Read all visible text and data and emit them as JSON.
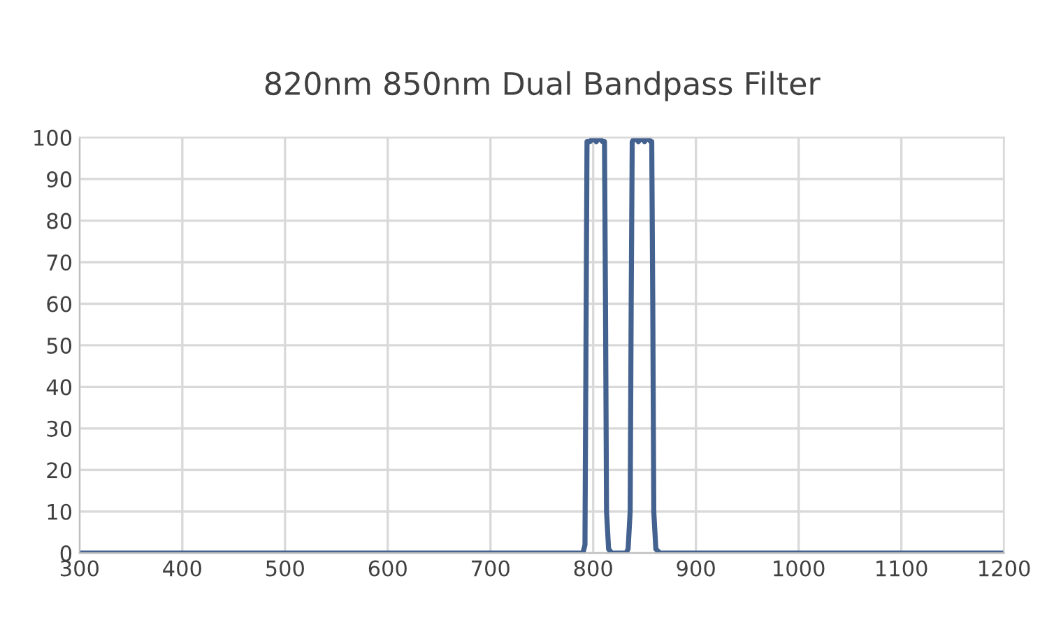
{
  "chart_data": {
    "type": "line",
    "title": "820nm 850nm Dual Bandpass Filter",
    "series": [
      {
        "color": "#44628f",
        "x": [
          300,
          400,
          500,
          600,
          700,
          780,
          790,
          792,
          793,
          794,
          797,
          800,
          803,
          806,
          809,
          811,
          812,
          813,
          815,
          818,
          825,
          832,
          834,
          836,
          837,
          838,
          841,
          844,
          847,
          850,
          853,
          856,
          857,
          858,
          859,
          861,
          865,
          900,
          1000,
          1100,
          1200
        ],
        "values": [
          0,
          0,
          0,
          0,
          0,
          0,
          0,
          2,
          50,
          99,
          99,
          100,
          99,
          100,
          99,
          99,
          60,
          10,
          1,
          0,
          0,
          0,
          1,
          10,
          60,
          99,
          100,
          99,
          100,
          99,
          100,
          99,
          99,
          60,
          10,
          1,
          0,
          0,
          0,
          0,
          0
        ]
      }
    ],
    "xlim": [
      300,
      1200
    ],
    "xticks": [
      300,
      400,
      500,
      600,
      700,
      800,
      900,
      1000,
      1100,
      1200
    ],
    "ylim": [
      0,
      100
    ],
    "yticks": [
      0,
      10,
      20,
      30,
      40,
      50,
      60,
      70,
      80,
      90,
      100
    ],
    "grid": true,
    "marker": "none",
    "line_style": "solid"
  }
}
